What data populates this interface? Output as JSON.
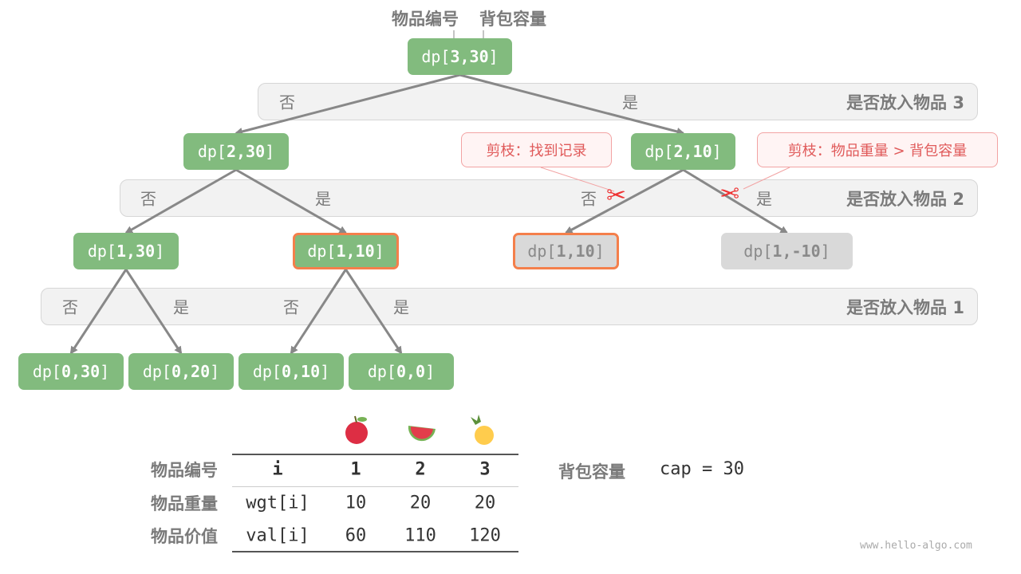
{
  "top_labels": {
    "item_index": "物品编号",
    "capacity": "背包容量"
  },
  "node_prefix": "dp[",
  "node_suffix": "]",
  "bands": [
    {
      "title": "是否放入物品 3",
      "labels": [
        "否",
        "是"
      ]
    },
    {
      "title": "是否放入物品 2",
      "labels": [
        "否",
        "是",
        "否",
        "是"
      ]
    },
    {
      "title": "是否放入物品 1",
      "labels": [
        "否",
        "是",
        "否",
        "是"
      ]
    }
  ],
  "nodes": [
    {
      "args": "3,30",
      "style": "normal"
    },
    {
      "args": "2,30",
      "style": "normal"
    },
    {
      "args": "2,10",
      "style": "normal"
    },
    {
      "args": "1,30",
      "style": "normal"
    },
    {
      "args": "1,10",
      "style": "highlighted"
    },
    {
      "args": "1,10",
      "style": "pruned-highlighted"
    },
    {
      "args": "1,-10",
      "style": "pruned"
    },
    {
      "args": "0,30",
      "style": "normal"
    },
    {
      "args": "0,20",
      "style": "normal"
    },
    {
      "args": "0,10",
      "style": "normal"
    },
    {
      "args": "0,0",
      "style": "normal"
    }
  ],
  "callouts": {
    "memo": "剪枝：找到记录",
    "overweight": "剪枝：物品重量 > 背包容量"
  },
  "colors": {
    "node": "#82bb7e",
    "highlight_border": "#f47f4b",
    "pruned": "#d9d9d9",
    "callout_text": "#e05a5a",
    "edge": "#888888"
  },
  "table": {
    "fruit_icons": [
      "apple-icon",
      "watermelon-icon",
      "pineapple-icon"
    ],
    "rows": [
      {
        "label": "物品编号",
        "cells": [
          "i",
          "1",
          "2",
          "3"
        ]
      },
      {
        "label": "物品重量",
        "cells": [
          "wgt[i]",
          "10",
          "20",
          "20"
        ]
      },
      {
        "label": "物品价值",
        "cells": [
          "val[i]",
          "60",
          "110",
          "120"
        ]
      }
    ]
  },
  "capacity": {
    "label": "背包容量",
    "value": "cap = 30"
  },
  "watermark": "www.hello-algo.com"
}
